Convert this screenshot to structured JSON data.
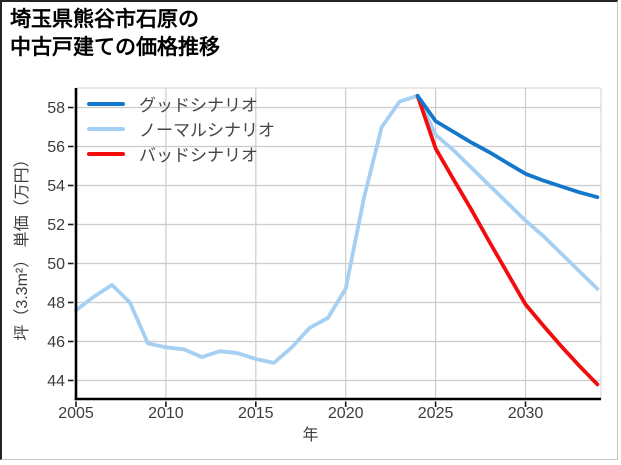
{
  "figure": {
    "title_lines": [
      "埼玉県熊谷市石原の",
      "中古戸建ての価格推移"
    ]
  },
  "chart_data": {
    "type": "line",
    "title": "埼玉県熊谷市石原の中古戸建ての価格推移",
    "xlabel": "年",
    "ylabel": "坪（3.3m²） 単価（万円）",
    "x_ticks": [
      2005,
      2010,
      2015,
      2020,
      2025,
      2030
    ],
    "y_ticks": [
      44,
      46,
      48,
      50,
      52,
      54,
      56,
      58
    ],
    "xlim": [
      2005,
      2034.2
    ],
    "ylim": [
      43.05,
      59.0
    ],
    "grid": true,
    "legend_position": "upper left",
    "colors": {
      "grid": "#cccccc",
      "upper_spines": "#d9d9d9",
      "axis": "#000000",
      "tick_label": "#3d3d3d",
      "legend_label": "#454545"
    },
    "series": [
      {
        "key": "good",
        "name": "グッドシナリオ",
        "color": "#1577c9",
        "x": [
          2024,
          2025,
          2026,
          2027,
          2028,
          2029,
          2030,
          2031,
          2032,
          2033,
          2034
        ],
        "y": [
          58.6,
          57.3,
          56.75,
          56.2,
          55.7,
          55.15,
          54.6,
          54.25,
          53.95,
          53.65,
          53.4
        ]
      },
      {
        "key": "normal",
        "name": "ノーマルシナリオ",
        "color": "#a6d0f3",
        "x": [
          2005,
          2006,
          2007,
          2008,
          2009,
          2010,
          2011,
          2012,
          2013,
          2014,
          2015,
          2016,
          2017,
          2018,
          2019,
          2020,
          2021,
          2022,
          2023,
          2024,
          2025,
          2026,
          2027,
          2028,
          2029,
          2030,
          2031,
          2032,
          2033,
          2034
        ],
        "y": [
          47.6,
          48.3,
          48.9,
          48.0,
          45.9,
          45.7,
          45.6,
          45.2,
          45.5,
          45.4,
          45.1,
          44.9,
          45.7,
          46.7,
          47.2,
          48.7,
          53.3,
          57.0,
          58.3,
          58.6,
          56.6,
          55.8,
          54.9,
          54.0,
          53.1,
          52.2,
          51.4,
          50.5,
          49.6,
          48.7
        ]
      },
      {
        "key": "bad",
        "name": "バッドシナリオ",
        "color": "#f20c0c",
        "x": [
          2024,
          2025,
          2026,
          2027,
          2028,
          2029,
          2030,
          2031,
          2032,
          2033,
          2034
        ],
        "y": [
          58.6,
          55.9,
          54.3,
          52.75,
          51.1,
          49.5,
          47.9,
          46.8,
          45.75,
          44.75,
          43.8
        ]
      }
    ]
  }
}
